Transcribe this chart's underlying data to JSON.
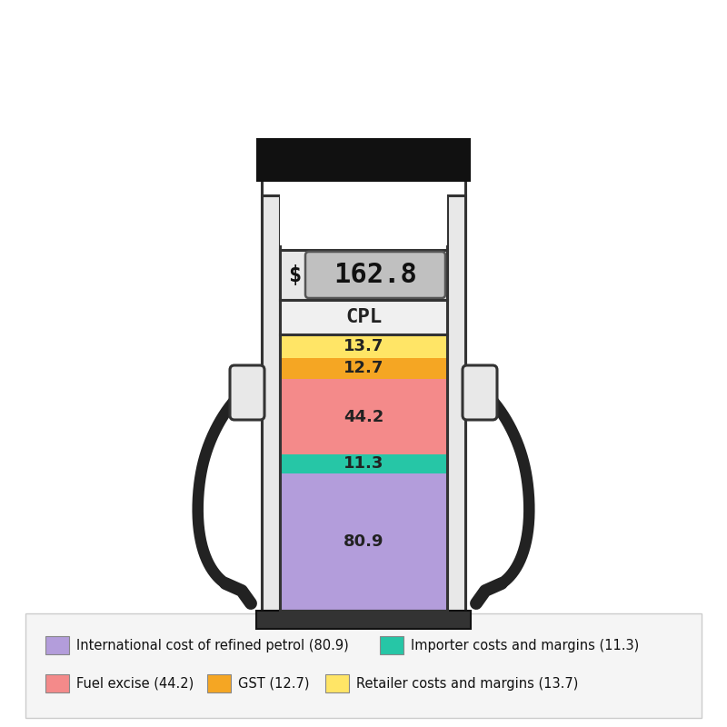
{
  "price": "162.8",
  "cpl_label": "CPL",
  "dollar_sign": "$",
  "segments": [
    {
      "label": "80.9",
      "value": 80.9,
      "color": "#b39ddb"
    },
    {
      "label": "11.3",
      "value": 11.3,
      "color": "#26c6a6"
    },
    {
      "label": "44.2",
      "value": 44.2,
      "color": "#f48a8a"
    },
    {
      "label": "12.7",
      "value": 12.7,
      "color": "#f5a623"
    },
    {
      "label": "13.7",
      "value": 13.7,
      "color": "#ffe566"
    }
  ],
  "legend_row1": [
    {
      "color": "#b39ddb",
      "label": "International cost of refined petrol (80.9)"
    },
    {
      "color": "#26c6a6",
      "label": "Importer costs and margins (11.3)"
    }
  ],
  "legend_row2": [
    {
      "color": "#f48a8a",
      "label": "Fuel excise (44.2)"
    },
    {
      "color": "#f5a623",
      "label": "GST (12.7)"
    },
    {
      "color": "#ffe566",
      "label": "Retailer costs and margins (13.7)"
    }
  ],
  "bg_color": "#ffffff",
  "body_fc": "#e8e8e8",
  "body_ec": "#333333",
  "top_fc": "#111111",
  "lcd_fc": "#c0c0c0",
  "lcd_ec": "#555555"
}
